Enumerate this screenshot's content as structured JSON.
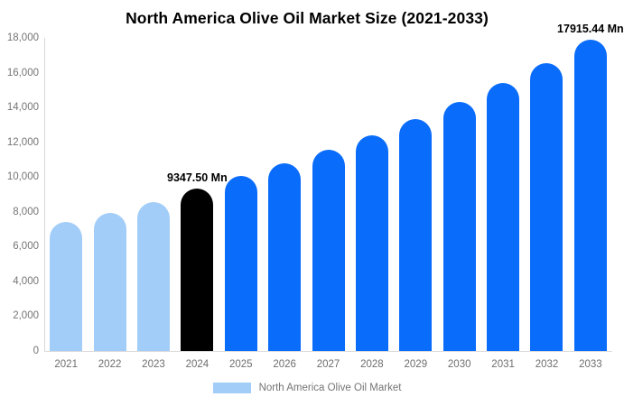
{
  "title": "North America Olive Oil Market Size (2021-2033)",
  "legend": {
    "label": "North America Olive Oil Market",
    "swatch_color": "#a2cdf8"
  },
  "chart_data": {
    "type": "bar",
    "title": "North America Olive Oil Market Size (2021-2033)",
    "categories": [
      "2021",
      "2022",
      "2023",
      "2024",
      "2025",
      "2026",
      "2027",
      "2028",
      "2029",
      "2030",
      "2031",
      "2032",
      "2033"
    ],
    "values": [
      7400,
      7950,
      8550,
      9347.5,
      10050,
      10780,
      11560,
      12400,
      13320,
      14310,
      15400,
      16550,
      17915.44
    ],
    "unit": "Mn",
    "ylim": [
      0,
      18000
    ],
    "ytick_step": 2000,
    "ytick_labels": [
      "0",
      "2,000",
      "4,000",
      "6,000",
      "8,000",
      "10,000",
      "12,000",
      "14,000",
      "16,000",
      "18,000"
    ],
    "grid": false,
    "legend_position": "bottom",
    "colors": {
      "historical": "#a2cdf8",
      "highlight": "#000000",
      "forecast": "#0a6cfa"
    },
    "bar_color_keys": [
      "historical",
      "historical",
      "historical",
      "highlight",
      "forecast",
      "forecast",
      "forecast",
      "forecast",
      "forecast",
      "forecast",
      "forecast",
      "forecast",
      "forecast"
    ],
    "annotations": [
      {
        "category": "2024",
        "text": "9347.50 Mn"
      },
      {
        "category": "2033",
        "text": "17915.44 Mn"
      }
    ],
    "axis_color": "#d9d9d9",
    "tick_label_color": "#757575"
  }
}
